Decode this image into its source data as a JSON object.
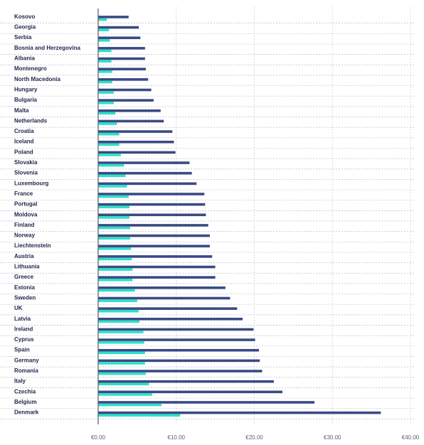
{
  "chart_data": {
    "type": "bar",
    "orientation": "horizontal",
    "grid": true,
    "xlim": [
      0,
      40
    ],
    "xticks": [
      "€0.00",
      "€10.00",
      "€20.00",
      "€30.00",
      "€40.00"
    ],
    "colors": {
      "series_1": "#3a4a84",
      "series_2": "#2ee0c8"
    },
    "categories": [
      "Kosovo",
      "Georgia",
      "Serbia",
      "Bosnia and Herzegovina",
      "Albania",
      "Montenegro",
      "North Macedonia",
      "Hungary",
      "Bulgaria",
      "Malta",
      "Netherlands",
      "Croatia",
      "Iceland",
      "Poland",
      "Slovakia",
      "Slovenia",
      "Luxembourg",
      "France",
      "Portugal",
      "Moldova",
      "Finland",
      "Norway",
      "Liechtenstein",
      "Austria",
      "Lithuania",
      "Greece",
      "Estonia",
      "Sweden",
      "UK",
      "Latvia",
      "Ireland",
      "Cyprus",
      "Spain",
      "Germany",
      "Romania",
      "Italy",
      "Czechia",
      "Belgium",
      "Denmark"
    ],
    "series": [
      {
        "values": [
          3.9,
          5.2,
          5.4,
          6.0,
          6.0,
          6.1,
          6.4,
          6.8,
          7.1,
          8.0,
          8.4,
          9.5,
          9.7,
          9.9,
          11.7,
          12.0,
          12.6,
          13.6,
          13.7,
          13.8,
          14.1,
          14.3,
          14.3,
          14.6,
          15.0,
          15.0,
          16.3,
          16.9,
          17.8,
          18.5,
          19.9,
          20.1,
          20.6,
          20.7,
          21.0,
          22.5,
          23.6,
          27.7,
          36.2
        ]
      },
      {
        "values": [
          1.1,
          1.4,
          1.5,
          1.7,
          1.7,
          1.8,
          1.8,
          2.0,
          2.0,
          2.2,
          2.4,
          2.7,
          2.7,
          2.9,
          3.3,
          3.5,
          3.7,
          3.9,
          4.0,
          4.0,
          4.1,
          4.1,
          4.2,
          4.3,
          4.4,
          4.4,
          4.7,
          5.0,
          5.2,
          5.3,
          5.8,
          5.9,
          6.0,
          6.0,
          6.1,
          6.5,
          6.9,
          8.1,
          10.5
        ]
      }
    ]
  }
}
